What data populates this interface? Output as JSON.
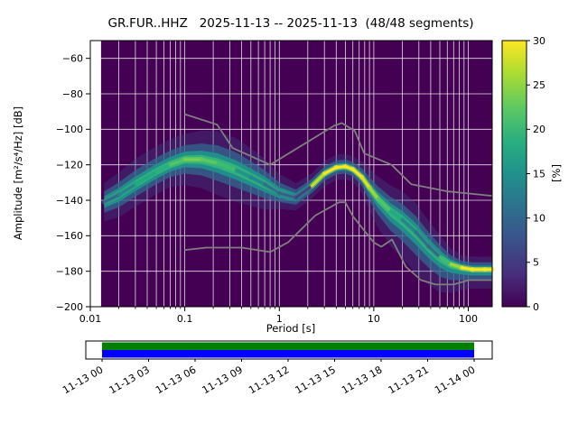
{
  "chart_data": {
    "type": "heatmap",
    "title": "GR.FUR..HHZ   2025-11-13 -- 2025-11-13  (48/48 segments)",
    "xlabel": "Period [s]",
    "ylabel": "Amplitude [m²/s⁴/Hz] [dB]",
    "xscale": "log",
    "xlim": [
      0.01,
      179
    ],
    "ylim": [
      -200,
      -50
    ],
    "x_ticks": [
      0.01,
      0.1,
      1,
      10,
      100
    ],
    "x_tick_labels": [
      "0.01",
      "0.1",
      "1",
      "10",
      "100"
    ],
    "y_ticks": [
      -200,
      -180,
      -160,
      -140,
      -120,
      -100,
      -80,
      -60
    ],
    "y_tick_labels": [
      "−200",
      "−180",
      "−160",
      "−140",
      "−120",
      "−100",
      "−80",
      "−60"
    ],
    "grid": true,
    "grid_color": "#ffffff",
    "heatmap_background": "#440154",
    "data_start_period": 0.013,
    "psd_distribution": {
      "columns": [
        "period_s",
        "mode_dB",
        "spread_up_dB",
        "spread_down_dB",
        "core_color"
      ],
      "points": [
        [
          0.014,
          -141,
          6,
          6,
          "#31688e"
        ],
        [
          0.02,
          -137,
          7,
          7,
          "#26828e"
        ],
        [
          0.03,
          -131,
          8,
          7,
          "#22a884"
        ],
        [
          0.05,
          -124,
          8,
          7,
          "#2ab07f"
        ],
        [
          0.07,
          -120,
          8,
          7,
          "#54c568"
        ],
        [
          0.1,
          -117,
          8,
          8,
          "#7ad151"
        ],
        [
          0.15,
          -117,
          9,
          9,
          "#5ec962"
        ],
        [
          0.22,
          -119,
          10,
          10,
          "#3fbc73"
        ],
        [
          0.35,
          -123,
          10,
          10,
          "#21918c"
        ],
        [
          0.5,
          -127,
          9,
          9,
          "#26828e"
        ],
        [
          0.7,
          -131,
          8,
          8,
          "#2e6f8e"
        ],
        [
          1.0,
          -136,
          6,
          5,
          "#365c8d"
        ],
        [
          1.5,
          -138.5,
          4.5,
          4,
          "#433e85"
        ],
        [
          2.2,
          -132,
          4,
          4,
          "#c2df23"
        ],
        [
          3.0,
          -125,
          4,
          4,
          "#fde725"
        ],
        [
          4.0,
          -121.5,
          4,
          4,
          "#fde725"
        ],
        [
          5.0,
          -121,
          4,
          4,
          "#fde725"
        ],
        [
          6.0,
          -122.5,
          4,
          4,
          "#fde725"
        ],
        [
          7.5,
          -127,
          5,
          5,
          "#e5e419"
        ],
        [
          9.0,
          -133,
          6,
          7,
          "#a0da39"
        ],
        [
          11,
          -139,
          7,
          9,
          "#54c568"
        ],
        [
          15,
          -146,
          8,
          11,
          "#22a884"
        ],
        [
          20,
          -151,
          9,
          12,
          "#26828e"
        ],
        [
          28,
          -158,
          9,
          13,
          "#2e6f8e"
        ],
        [
          38,
          -166,
          8,
          12,
          "#31688e"
        ],
        [
          50,
          -172,
          7,
          11,
          "#3fbc73"
        ],
        [
          65,
          -176,
          5,
          9,
          "#a0da39"
        ],
        [
          85,
          -178,
          4,
          7,
          "#fde725"
        ],
        [
          110,
          -179,
          4,
          6,
          "#fde725"
        ],
        [
          150,
          -179,
          4,
          6,
          "#fde725"
        ],
        [
          179,
          -179,
          4,
          6,
          "#fde725"
        ]
      ]
    },
    "noise_models": {
      "color": "#7f7f7f",
      "high": [
        [
          0.1,
          -91.5
        ],
        [
          0.22,
          -97.4
        ],
        [
          0.32,
          -110.5
        ],
        [
          0.8,
          -120.0
        ],
        [
          3.8,
          -98.0
        ],
        [
          4.6,
          -96.5
        ],
        [
          6.3,
          -101.0
        ],
        [
          7.9,
          -113.5
        ],
        [
          15.4,
          -120.0
        ],
        [
          25,
          -131.0
        ],
        [
          61,
          -135.0
        ],
        [
          179,
          -137.5
        ]
      ],
      "low": [
        [
          0.1,
          -168.0
        ],
        [
          0.17,
          -166.7
        ],
        [
          0.4,
          -166.7
        ],
        [
          0.8,
          -169.2
        ],
        [
          1.24,
          -163.7
        ],
        [
          2.4,
          -148.6
        ],
        [
          4.3,
          -141.1
        ],
        [
          5.0,
          -141.1
        ],
        [
          6.0,
          -149.0
        ],
        [
          10,
          -163.8
        ],
        [
          12,
          -166.2
        ],
        [
          15.6,
          -162.1
        ],
        [
          21.9,
          -177.5
        ],
        [
          31.6,
          -185.0
        ],
        [
          45,
          -187.5
        ],
        [
          70,
          -187.5
        ],
        [
          101,
          -185.0
        ],
        [
          179,
          -185.0
        ]
      ]
    },
    "colorbar": {
      "label": "[%]",
      "min": 0,
      "max": 30,
      "ticks": [
        0,
        5,
        10,
        15,
        20,
        25,
        30
      ],
      "colormap": "viridis",
      "gradient_stops": [
        [
          0,
          "#440154"
        ],
        [
          0.12,
          "#472d7b"
        ],
        [
          0.25,
          "#3b528b"
        ],
        [
          0.38,
          "#2c728e"
        ],
        [
          0.5,
          "#21918c"
        ],
        [
          0.62,
          "#28ae80"
        ],
        [
          0.75,
          "#5ec962"
        ],
        [
          0.88,
          "#addc30"
        ],
        [
          1,
          "#fde725"
        ]
      ]
    },
    "timeline": {
      "tick_labels": [
        "11-13 00",
        "11-13 03",
        "11-13 06",
        "11-13 09",
        "11-13 12",
        "11-13 15",
        "11-13 18",
        "11-13 21",
        "11-14 00"
      ],
      "bar_top_color": "#008000",
      "bar_bottom_color": "#0000ff"
    }
  }
}
